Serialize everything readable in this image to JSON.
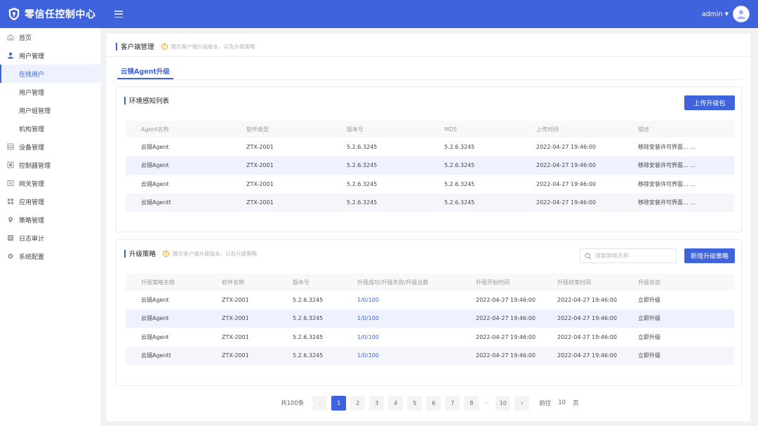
{
  "app": {
    "title": "零信任控制中心",
    "user": "admin"
  },
  "sidebar": {
    "items": [
      {
        "label": "首页",
        "icon": "home-icon"
      },
      {
        "label": "用户管理",
        "icon": "user-icon"
      },
      {
        "label": "在线用户",
        "sub": true
      },
      {
        "label": "用户管理",
        "sub": true
      },
      {
        "label": "用户组管理",
        "sub": true
      },
      {
        "label": "机构管理",
        "sub": true
      },
      {
        "label": "设备管理",
        "icon": "device-icon"
      },
      {
        "label": "控制器管理",
        "icon": "controller-icon"
      },
      {
        "label": "网关管理",
        "icon": "gateway-icon"
      },
      {
        "label": "应用管理",
        "icon": "apps-icon"
      },
      {
        "label": "策略管理",
        "icon": "location-icon"
      },
      {
        "label": "日志审计",
        "icon": "log-icon"
      },
      {
        "label": "系统配置",
        "icon": "gear-icon"
      }
    ]
  },
  "page": {
    "title": "客户端管理",
    "hint": "展示客户端升级版本，以及升级策略",
    "tab": "云镜Agent升级"
  },
  "env_panel": {
    "title": "环境感知列表",
    "upload_button": "上传升级包",
    "columns": [
      "Agent名称",
      "软件类型",
      "版本号",
      "MD5",
      "上传时间",
      "描述"
    ],
    "rows": [
      [
        "云镜Agent",
        "ZTX-2001",
        "5.2.6.3245",
        "5.2.6.3245",
        "2022-04-27 19:46:00",
        "移除安装许可界面... ..."
      ],
      [
        "云镜Agent",
        "ZTX-2001",
        "5.2.6.3245",
        "5.2.6.3245",
        "2022-04-27 19:46:00",
        "移除安装许可界面... ..."
      ],
      [
        "云镜Agent",
        "ZTX-2001",
        "5.2.6.3245",
        "5.2.6.3245",
        "2022-04-27 19:46:00",
        "移除安装许可界面... ..."
      ],
      [
        "云镜Agentt",
        "ZTX-2001",
        "5.2.6.3245",
        "5.2.6.3245",
        "2022-04-27 19:46:00",
        "移除安装许可界面... ..."
      ]
    ]
  },
  "strategy_panel": {
    "title": "升级策略",
    "hint": "展示客户端升级版本，以及升级策略",
    "search_placeholder": "搜索策略名称",
    "add_button": "新增升级策略",
    "columns": [
      "升级策略名称",
      "软件名称",
      "版本号",
      "升级成功/升级失败/升级总数",
      "升级开始时间",
      "升级结束时间",
      "升级状态"
    ],
    "rows": [
      [
        "云镜Agent",
        "ZTX-2001",
        "5.2.6.3245",
        "1/0/100",
        "2022-04-27 19:46:00",
        "2022-04-27 19:46:00",
        "立即升级"
      ],
      [
        "云镜Agent",
        "ZTX-2001",
        "5.2.6.3245",
        "1/0/100",
        "2022-04-27 19:46:00",
        "2022-04-27 19:46:00",
        "立即升级"
      ],
      [
        "云镜Agent",
        "ZTX-2001",
        "5.2.6.3245",
        "1/0/100",
        "2022-04-27 19:46:00",
        "2022-04-27 19:46:00",
        "立即升级"
      ],
      [
        "云镜Agentt",
        "ZTX-2001",
        "5.2.6.3245",
        "1/0/100",
        "2022-04-27 19:46:00",
        "2022-04-27 19:46:00",
        "立即升级"
      ]
    ]
  },
  "pagination": {
    "total": "共100条",
    "pages": [
      "1",
      "2",
      "3",
      "4",
      "5",
      "6",
      "7",
      "8"
    ],
    "ellipsis": "···",
    "last": "10",
    "goto_label": "前往",
    "goto_value": "10",
    "goto_suffix": "页"
  },
  "colors": {
    "primary": "#3e63dd",
    "warning": "#f0a020"
  }
}
